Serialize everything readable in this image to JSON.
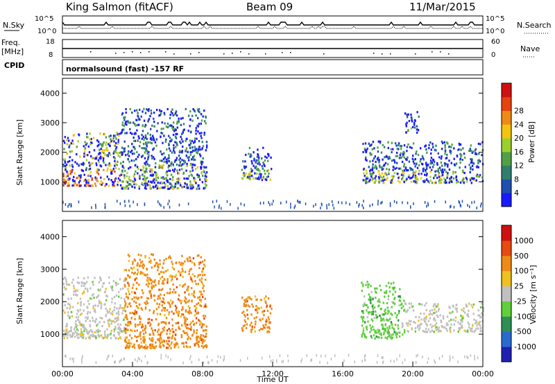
{
  "header": {
    "station": "King Salmon (fitACF)",
    "beam": "Beam 09",
    "date": "11/Mar/2015"
  },
  "top_panels": {
    "nsky_label": "N.Sky",
    "nsky_ticks": [
      "10^5",
      "10^0"
    ],
    "nsearch_label": "N.Search",
    "nsearch_ticks": [
      "10^5",
      "10^0"
    ],
    "freq_label": "Freq.",
    "freq_unit": "[MHz]",
    "freq_ticks": [
      "18",
      "8"
    ],
    "nave_label": "Nave",
    "nave_ticks": [
      "60",
      "0"
    ],
    "cpid_label": "CPID",
    "cpid_text": "normalsound (fast) -157 RF"
  },
  "chart_data": [
    {
      "type": "heatmap",
      "panel": "power",
      "ylabel": "Slant Range [km]",
      "xlabel": "",
      "xlim_hours": [
        0,
        24
      ],
      "ylim_km": [
        0,
        4500
      ],
      "yticks": [
        "1000",
        "2000",
        "3000",
        "4000"
      ],
      "colorbar": {
        "label": "Power [dB]",
        "ticks": [
          "4",
          "8",
          "12",
          "16",
          "20",
          "24",
          "28"
        ],
        "colors": [
          "#1a1aff",
          "#1f4fb0",
          "#2f7f6f",
          "#52a046",
          "#9ccf2e",
          "#f2c40f",
          "#f08a16",
          "#e8430f",
          "#d01010"
        ]
      },
      "echo_regions": [
        {
          "t0": 0.0,
          "t1": 3.3,
          "r0": 900,
          "r1": 2700,
          "level": "high"
        },
        {
          "t0": 3.3,
          "t1": 8.2,
          "r0": 800,
          "r1": 3500,
          "level": "mid"
        },
        {
          "t0": 10.2,
          "t1": 11.9,
          "r0": 1100,
          "r1": 2200,
          "level": "mid"
        },
        {
          "t0": 17.1,
          "t1": 24.0,
          "r0": 1000,
          "r1": 2400,
          "level": "mid"
        },
        {
          "t0": 19.5,
          "t1": 20.3,
          "r0": 2700,
          "r1": 3400,
          "level": "low"
        }
      ]
    },
    {
      "type": "heatmap",
      "panel": "velocity",
      "ylabel": "Slant Range [km]",
      "xlabel": "Time UT",
      "xlim_hours": [
        0,
        24
      ],
      "ylim_km": [
        0,
        4500
      ],
      "yticks": [
        "1000",
        "2000",
        "3000",
        "4000"
      ],
      "xticks": [
        "00:00",
        "04:00",
        "08:00",
        "12:00",
        "16:00",
        "20:00",
        "00:00"
      ],
      "colorbar": {
        "label": "Velocity [m s⁻¹]",
        "ticks": [
          "1000",
          "500",
          "100",
          "25",
          "-25",
          "-100",
          "-500",
          "-1000"
        ],
        "colors": [
          "#2020b0",
          "#2a6ad0",
          "#2e8f55",
          "#5fcf3a",
          "#c0c0c0",
          "#f0c020",
          "#f08a16",
          "#e84a10",
          "#d01010"
        ]
      },
      "echo_regions": [
        {
          "t0": 0.0,
          "t1": 3.5,
          "r0": 900,
          "r1": 2800,
          "level": "gray"
        },
        {
          "t0": 3.5,
          "t1": 8.2,
          "r0": 600,
          "r1": 3500,
          "level": "orange"
        },
        {
          "t0": 10.2,
          "t1": 11.9,
          "r0": 1100,
          "r1": 2200,
          "level": "orange"
        },
        {
          "t0": 17.0,
          "t1": 19.5,
          "r0": 900,
          "r1": 2700,
          "level": "green"
        },
        {
          "t0": 19.5,
          "t1": 24.0,
          "r0": 1100,
          "r1": 2000,
          "level": "gray"
        }
      ]
    }
  ]
}
